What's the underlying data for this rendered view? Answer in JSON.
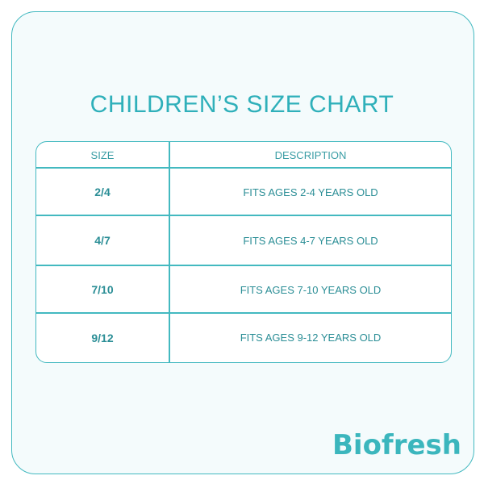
{
  "title": "CHILDREN’S SIZE CHART",
  "table": {
    "headers": {
      "size": "SIZE",
      "description": "DESCRIPTION"
    },
    "rows": [
      {
        "size": "2/4",
        "description": "FITS AGES 2-4 YEARS OLD"
      },
      {
        "size": "4/7",
        "description": "FITS AGES 4-7 YEARS OLD"
      },
      {
        "size": "7/10",
        "description": "FITS AGES 7-10 YEARS OLD"
      },
      {
        "size": "9/12",
        "description": "FITS AGES 9-12 YEARS OLD"
      }
    ]
  },
  "brand": {
    "logo_text": "Biofresh"
  },
  "colors": {
    "accent": "#43b9c0",
    "text": "#2b8e96",
    "background": "#f4fbfc"
  }
}
